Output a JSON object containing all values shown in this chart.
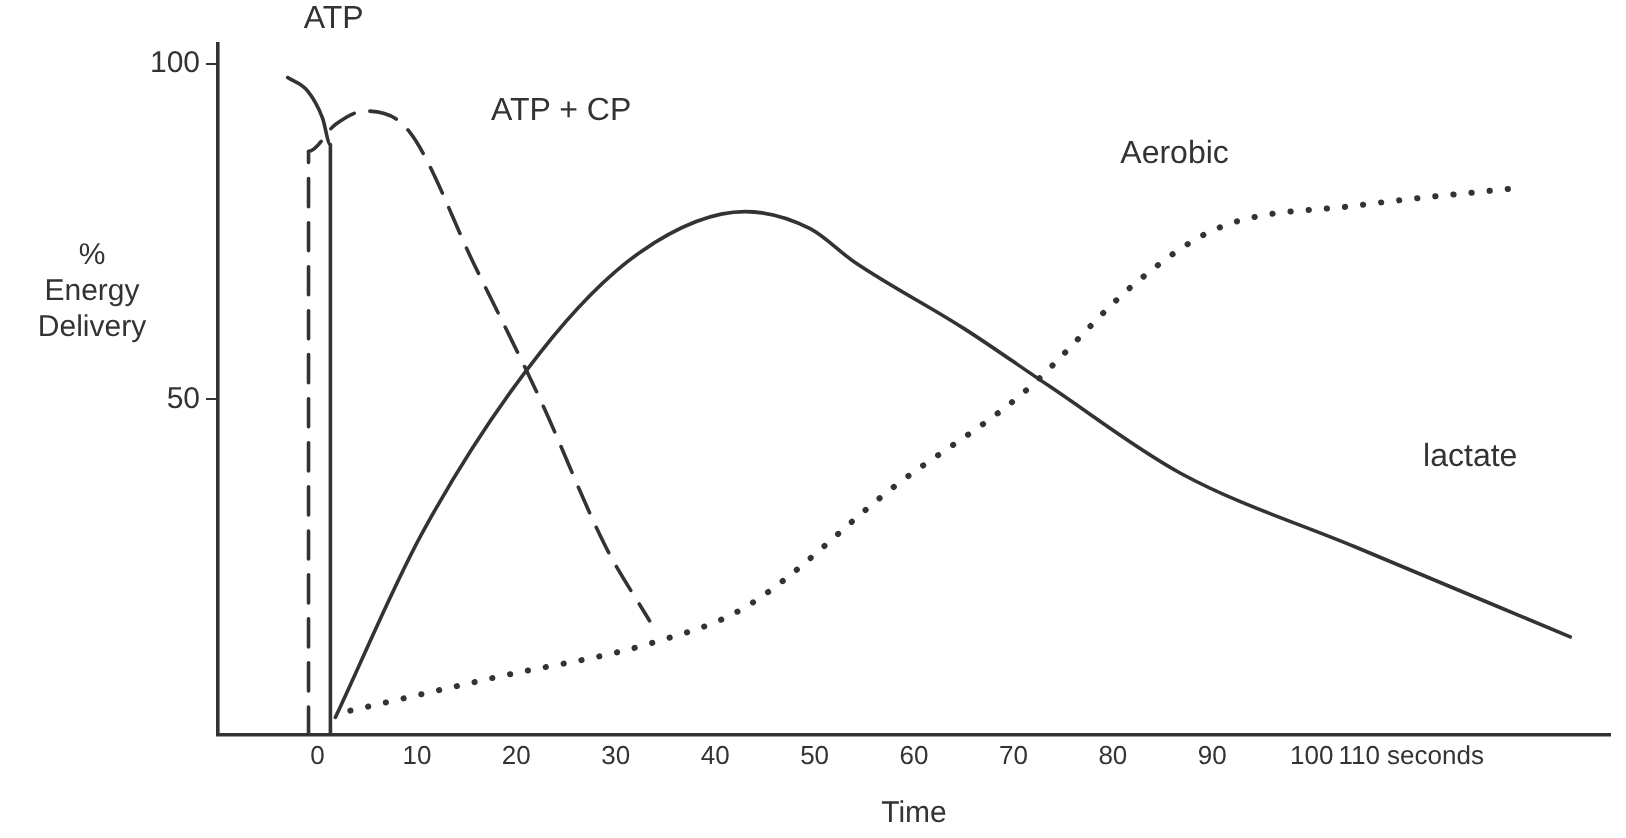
{
  "chart_data": {
    "type": "line",
    "xlabel": "Time",
    "ylabel": "% Energy Delivery",
    "xlim": [
      -10,
      130
    ],
    "ylim": [
      0,
      103
    ],
    "xticks": [
      0,
      10,
      20,
      30,
      40,
      50,
      60,
      70,
      80,
      90,
      100,
      {
        "value": 110,
        "label": "110 seconds"
      }
    ],
    "yticks": [
      50,
      100
    ],
    "series": [
      {
        "name": "ATP",
        "color": "#333333",
        "line_style": "solid",
        "x": [
          -3,
          -1,
          0.5,
          1.3,
          1.3
        ],
        "values": [
          98,
          96,
          92,
          88,
          0
        ]
      },
      {
        "name": "ATP + CP",
        "color": "#333333",
        "line_style": "dashed",
        "x": [
          -0.9,
          -0.9,
          1.8,
          4.8,
          9.2,
          15.8,
          22.4,
          29,
          33.4
        ],
        "values": [
          0,
          87,
          91,
          93,
          90,
          70,
          50,
          28,
          17
        ]
      },
      {
        "name": "lactate",
        "color": "#333333",
        "line_style": "solid",
        "x": [
          1.8,
          10.5,
          22.4,
          32.5,
          43,
          49.5,
          54,
          65,
          73.6,
          86.8,
          104.4,
          126
        ],
        "values": [
          2.6,
          30,
          57,
          72,
          78,
          75.5,
          70.5,
          60.6,
          52,
          39,
          28,
          14.6
        ]
      },
      {
        "name": "Aerobic",
        "color": "#333333",
        "line_style": "dotted",
        "x": [
          3.3,
          18,
          33.4,
          43,
          58,
          71,
          82.4,
          90.5,
          105,
          120.4
        ],
        "values": [
          3.6,
          8.6,
          13.6,
          19,
          37,
          51,
          67.5,
          75.5,
          79,
          81.5
        ]
      }
    ],
    "marker": "none",
    "legend": false
  }
}
